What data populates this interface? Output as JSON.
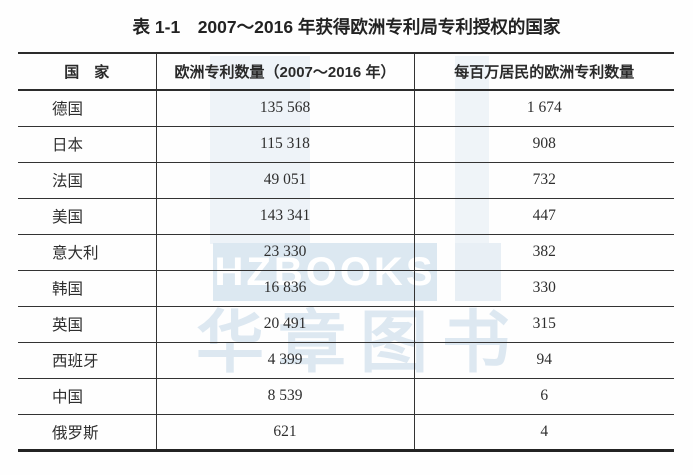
{
  "title": "表 1-1　2007～2016 年获得欧洲专利局专利授权的国家",
  "watermark": {
    "logo_text": "HZBOOKS",
    "cn_text": "华章图书"
  },
  "table": {
    "columns": [
      "国　家",
      "欧洲专利数量（2007～2016 年）",
      "每百万居民的欧洲专利数量"
    ],
    "rows": [
      {
        "country": "德国",
        "patents": "135 568",
        "per_million": "1 674"
      },
      {
        "country": "日本",
        "patents": "115 318",
        "per_million": "908"
      },
      {
        "country": "法国",
        "patents": "49 051",
        "per_million": "732"
      },
      {
        "country": "美国",
        "patents": "143 341",
        "per_million": "447"
      },
      {
        "country": "意大利",
        "patents": "23 330",
        "per_million": "382"
      },
      {
        "country": "韩国",
        "patents": "16 836",
        "per_million": "330"
      },
      {
        "country": "英国",
        "patents": "20 491",
        "per_million": "315"
      },
      {
        "country": "西班牙",
        "patents": "4 399",
        "per_million": "94"
      },
      {
        "country": "中国",
        "patents": "8 539",
        "per_million": "6"
      },
      {
        "country": "俄罗斯",
        "patents": "621",
        "per_million": "4"
      }
    ]
  },
  "colors": {
    "text": "#2e2e2e",
    "border": "#2f2f2f",
    "watermark_blue": "#dce8f1",
    "background": "#fefefe"
  }
}
